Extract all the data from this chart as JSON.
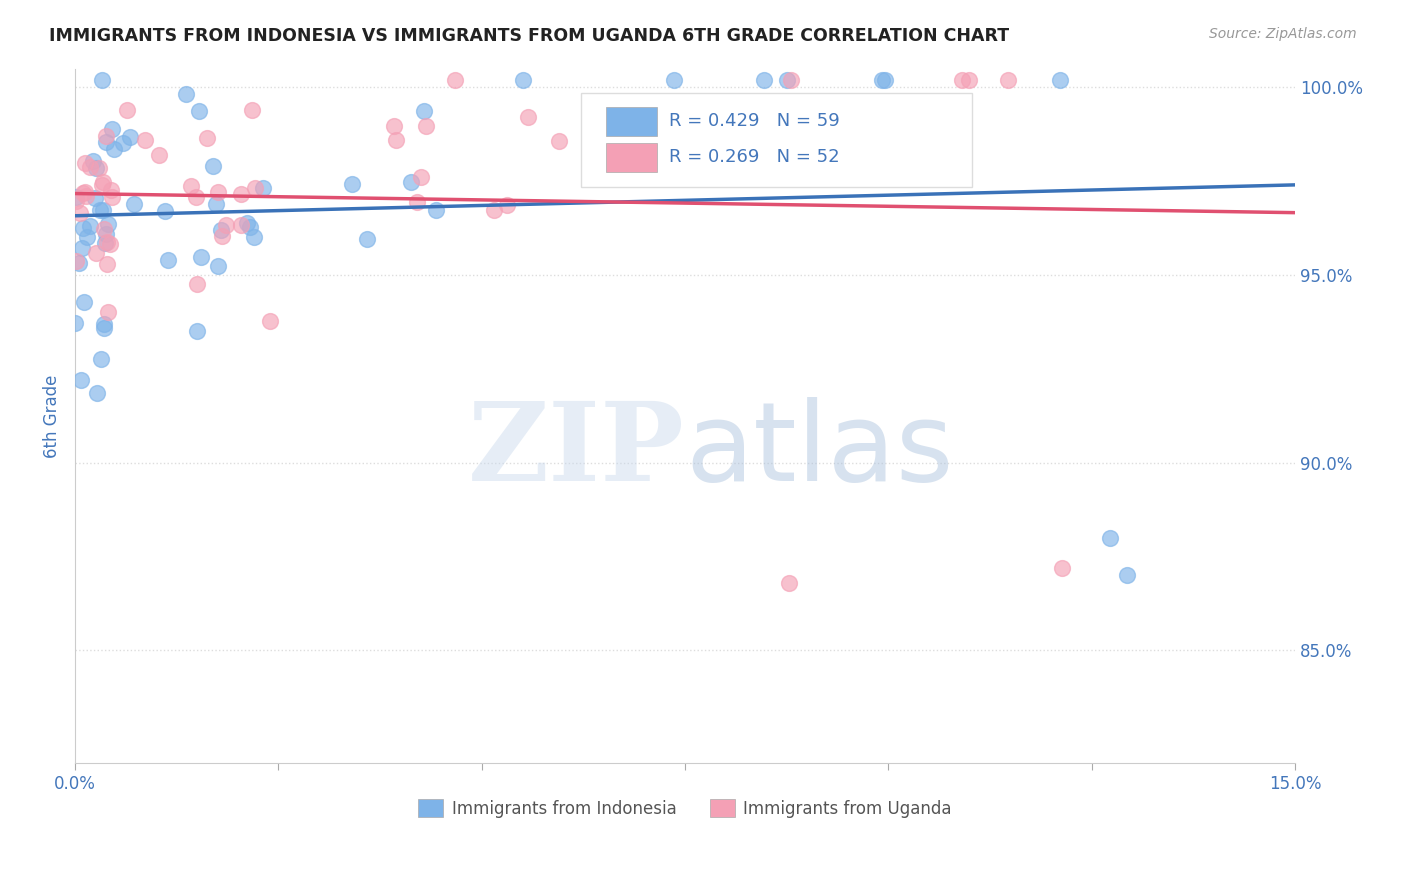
{
  "title": "IMMIGRANTS FROM INDONESIA VS IMMIGRANTS FROM UGANDA 6TH GRADE CORRELATION CHART",
  "source": "Source: ZipAtlas.com",
  "ylabel": "6th Grade",
  "ylabel_right_ticks": [
    "100.0%",
    "95.0%",
    "90.0%",
    "85.0%"
  ],
  "ylabel_right_vals": [
    1.0,
    0.95,
    0.9,
    0.85
  ],
  "legend_indonesia": "Immigrants from Indonesia",
  "legend_uganda": "Immigrants from Uganda",
  "R_indonesia": 0.429,
  "N_indonesia": 59,
  "R_uganda": 0.269,
  "N_uganda": 52,
  "color_indonesia": "#7EB3E8",
  "color_uganda": "#F4A0B5",
  "line_color_indonesia": "#3A72B8",
  "line_color_uganda": "#E05070",
  "background_color": "#FFFFFF",
  "grid_color": "#DDDDDD",
  "axis_label_color": "#4477BB",
  "xlim": [
    0.0,
    0.15
  ],
  "ylim": [
    0.82,
    1.005
  ]
}
